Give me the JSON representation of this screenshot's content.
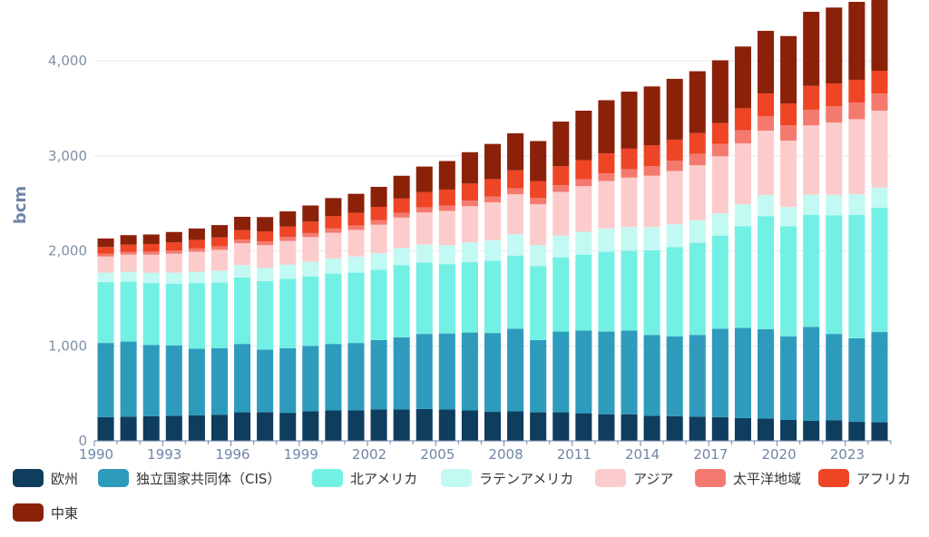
{
  "chart_data": {
    "type": "bar",
    "stacked": true,
    "title": "",
    "ylabel": "bcm",
    "xlabel": "",
    "ylim": [
      0,
      4500
    ],
    "y_ticks": [
      0,
      1000,
      2000,
      3000,
      4000
    ],
    "y_tick_labels": [
      "0",
      "1,000",
      "2,000",
      "3,000",
      "4,000"
    ],
    "grid": "horizontal",
    "legend_position": "bottom-left",
    "categories": [
      "1990",
      "1991",
      "1992",
      "1993",
      "1994",
      "1995",
      "1996",
      "1997",
      "1998",
      "1999",
      "2000",
      "2001",
      "2002",
      "2003",
      "2004",
      "2005",
      "2006",
      "2007",
      "2008",
      "2009",
      "2010",
      "2011",
      "2012",
      "2013",
      "2014",
      "2015",
      "2016",
      "2017",
      "2018",
      "2019",
      "2020",
      "2021",
      "2022",
      "2023",
      "2024"
    ],
    "x_tick_labels": [
      "1990",
      "1993",
      "1996",
      "1999",
      "2002",
      "2005",
      "2008",
      "2011",
      "2014",
      "2017",
      "2020",
      "2023"
    ],
    "series": [
      {
        "name": "欧州",
        "color": "#0e3d5e",
        "values": [
          250,
          255,
          260,
          265,
          270,
          275,
          300,
          300,
          295,
          310,
          320,
          320,
          330,
          330,
          335,
          330,
          320,
          305,
          310,
          300,
          300,
          290,
          280,
          280,
          265,
          260,
          255,
          250,
          240,
          235,
          220,
          210,
          215,
          200,
          195
        ]
      },
      {
        "name": "独立国家共同体（CIS）",
        "color": "#2e9bbd",
        "values": [
          780,
          790,
          750,
          740,
          700,
          700,
          720,
          660,
          680,
          690,
          700,
          710,
          730,
          760,
          790,
          800,
          820,
          830,
          870,
          760,
          850,
          870,
          870,
          880,
          850,
          840,
          860,
          930,
          950,
          940,
          880,
          990,
          910,
          880,
          950
        ]
      },
      {
        "name": "北アメリカ",
        "color": "#73f0e4",
        "values": [
          640,
          630,
          650,
          650,
          690,
          690,
          700,
          720,
          730,
          730,
          740,
          740,
          740,
          760,
          750,
          730,
          740,
          760,
          770,
          780,
          780,
          800,
          840,
          840,
          890,
          940,
          970,
          980,
          1070,
          1190,
          1160,
          1180,
          1250,
          1300,
          1310
        ]
      },
      {
        "name": "ラテンアメリカ",
        "color": "#c3f9f3",
        "values": [
          100,
          105,
          110,
          115,
          120,
          125,
          130,
          140,
          150,
          155,
          160,
          170,
          175,
          180,
          190,
          200,
          210,
          215,
          225,
          220,
          230,
          240,
          245,
          250,
          245,
          240,
          235,
          235,
          230,
          220,
          200,
          210,
          215,
          215,
          210
        ]
      },
      {
        "name": "アジア",
        "color": "#fccccc",
        "values": [
          170,
          180,
          190,
          200,
          210,
          220,
          230,
          240,
          250,
          260,
          270,
          280,
          300,
          320,
          340,
          360,
          380,
          400,
          420,
          430,
          460,
          480,
          500,
          520,
          540,
          560,
          580,
          600,
          640,
          680,
          700,
          730,
          760,
          790,
          810
        ]
      },
      {
        "name": "太平洋地域",
        "color": "#f47a6f",
        "values": [
          30,
          30,
          32,
          33,
          35,
          36,
          38,
          40,
          40,
          42,
          45,
          45,
          48,
          50,
          52,
          55,
          58,
          60,
          62,
          65,
          70,
          75,
          80,
          90,
          100,
          110,
          120,
          130,
          140,
          150,
          160,
          165,
          170,
          175,
          180
        ]
      },
      {
        "name": "アフリカ",
        "color": "#ed4525",
        "values": [
          70,
          75,
          80,
          85,
          90,
          95,
          100,
          105,
          110,
          120,
          130,
          135,
          140,
          150,
          160,
          170,
          180,
          185,
          190,
          180,
          200,
          200,
          210,
          215,
          220,
          220,
          220,
          220,
          230,
          240,
          230,
          250,
          240,
          240,
          240
        ]
      },
      {
        "name": "中東",
        "color": "#8b2108",
        "values": [
          90,
          100,
          100,
          110,
          120,
          130,
          140,
          150,
          160,
          170,
          190,
          200,
          210,
          240,
          270,
          300,
          330,
          370,
          390,
          420,
          470,
          520,
          560,
          600,
          620,
          640,
          650,
          660,
          650,
          660,
          710,
          780,
          800,
          820,
          850
        ]
      }
    ]
  }
}
